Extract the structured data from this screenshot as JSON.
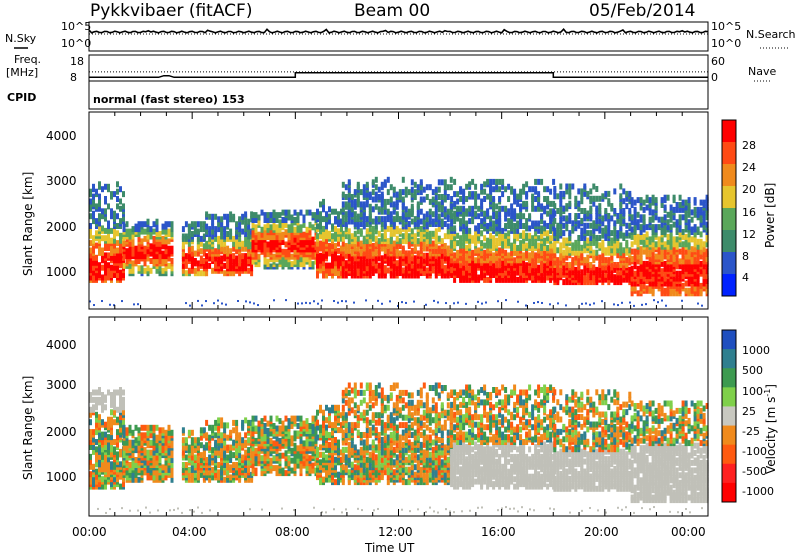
{
  "header": {
    "station": "Pykkvibaer (fitACF)",
    "beam": "Beam 00",
    "date": "05/Feb/2014"
  },
  "noise_panel": {
    "left_label": "N.Sky",
    "right_label": "N.Search",
    "left_ticks": [
      "10^5",
      "10^0"
    ],
    "right_ticks": [
      "10^5",
      "10^0"
    ]
  },
  "freq_panel": {
    "left_label_line1": "Freq.",
    "left_label_line2": "[MHz]",
    "right_label": "Nave",
    "left_ticks": [
      "18",
      "8"
    ],
    "right_ticks": [
      "60",
      "0"
    ],
    "freq_mhz": [
      [
        0,
        9.6
      ],
      [
        2.7,
        9.6
      ],
      [
        2.9,
        10.3
      ],
      [
        3.1,
        10.3
      ],
      [
        3.3,
        9.6
      ],
      [
        8.0,
        9.6
      ],
      [
        8.0,
        11.6
      ],
      [
        18.0,
        11.6
      ],
      [
        18.0,
        9.6
      ],
      [
        24.0,
        9.6
      ]
    ],
    "nave": [
      [
        0,
        22
      ],
      [
        24,
        22
      ]
    ]
  },
  "cpid": {
    "label": "CPID",
    "text": "normal (fast stereo) 153"
  },
  "chart_data": [
    {
      "type": "heatmap",
      "name": "power",
      "ylabel": "Slant Range [km]",
      "yticks": [
        1000,
        2000,
        3000,
        4000
      ],
      "ylim": [
        180,
        4600
      ],
      "xlim_hours": [
        0,
        24
      ],
      "colorbar_label": "Power [dB]",
      "colorbar_ticks": [
        "28",
        "24",
        "20",
        "16",
        "12",
        "8",
        "4"
      ],
      "colorbar_colors": [
        "#0022ff",
        "#2b55c9",
        "#3d8b6a",
        "#5aa75a",
        "#e6c52e",
        "#f08a1c",
        "#ff4a14",
        "#ff0000"
      ],
      "scatter_bands": [
        {
          "x0": 0.0,
          "x1": 1.3,
          "r0": 900,
          "r1": 3100,
          "core": 1200
        },
        {
          "x0": 1.3,
          "x1": 3.2,
          "r0": 1050,
          "r1": 2250,
          "core": 1550
        },
        {
          "x0": 3.6,
          "x1": 4.5,
          "r0": 1050,
          "r1": 2200,
          "core": 1350
        },
        {
          "x0": 4.5,
          "x1": 6.3,
          "r0": 1050,
          "r1": 2400,
          "core": 1300
        },
        {
          "x0": 6.3,
          "x1": 8.8,
          "r0": 1200,
          "r1": 2450,
          "core": 1700
        },
        {
          "x0": 8.8,
          "x1": 9.8,
          "r0": 1000,
          "r1": 2700,
          "core": 1400
        },
        {
          "x0": 9.8,
          "x1": 14.0,
          "r0": 1000,
          "r1": 3150,
          "core": 1200
        },
        {
          "x0": 14.0,
          "x1": 18.0,
          "r0": 900,
          "r1": 3150,
          "core": 1050
        },
        {
          "x0": 18.0,
          "x1": 21.0,
          "r0": 850,
          "r1": 3000,
          "core": 950
        },
        {
          "x0": 21.0,
          "x1": 24.0,
          "r0": 600,
          "r1": 2800,
          "core": 1050
        }
      ]
    },
    {
      "type": "heatmap",
      "name": "velocity",
      "ylabel": "Slant Range [km]",
      "xlabel": "Time UT",
      "yticks": [
        1000,
        2000,
        3000,
        4000
      ],
      "ylim": [
        180,
        4600
      ],
      "xlim_hours": [
        0,
        24
      ],
      "xticks": [
        "00:00",
        "04:00",
        "08:00",
        "12:00",
        "16:00",
        "20:00",
        "00:00"
      ],
      "colorbar_label": "Velocity [m s",
      "colorbar_label_sup": "-1",
      "colorbar_label_end": "]",
      "colorbar_ticks": [
        "1000",
        "500",
        "100",
        "25",
        "-25",
        "-100",
        "-500",
        "-1000"
      ],
      "colorbar_colors": [
        "#1f4fbf",
        "#2f7f8f",
        "#3d9a50",
        "#7fd04a",
        "#c8c8c0",
        "#f08a1c",
        "#ff5a10",
        "#ff2020",
        "#ff0000"
      ],
      "ground_scatter_color": "#c0c0b8"
    }
  ]
}
